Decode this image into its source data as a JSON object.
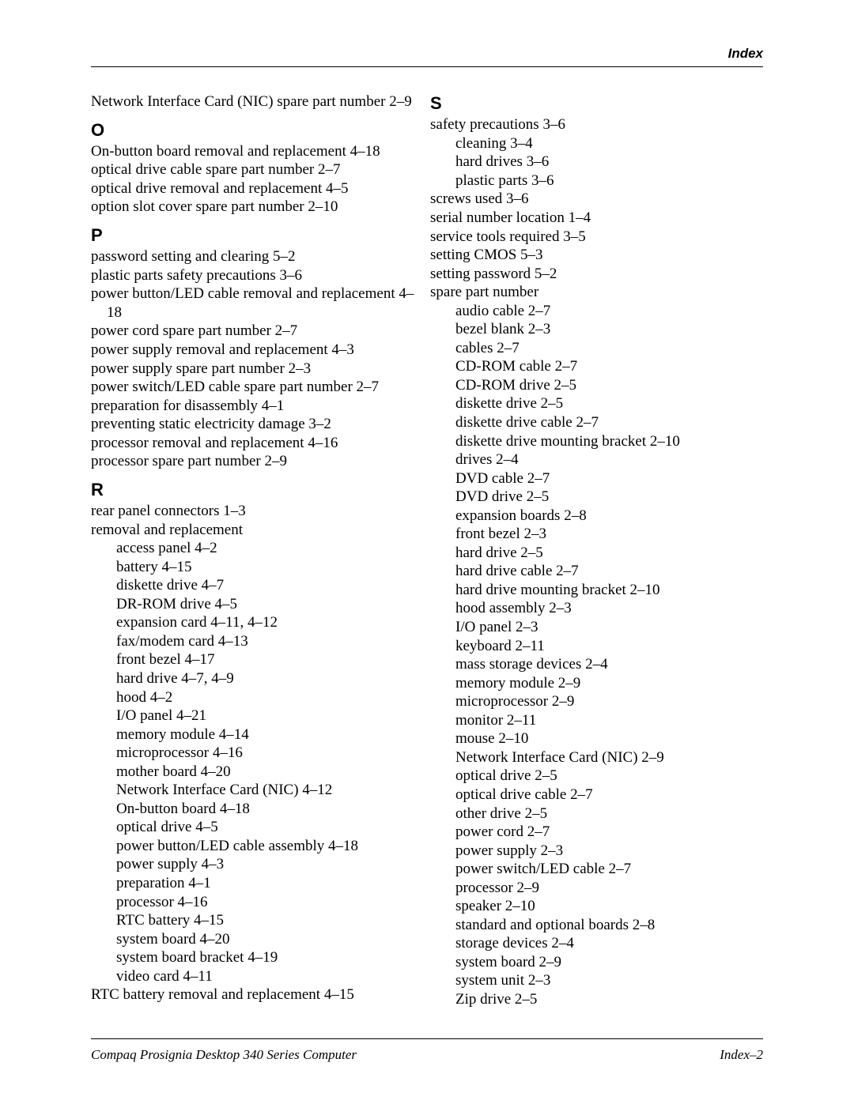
{
  "header_label": "Index",
  "footer_left": "Compaq Prosignia Desktop 340 Series Computer",
  "footer_right": "Index–2",
  "left_column": {
    "entry0": "Network Interface Card (NIC) spare part number 2–9",
    "letter_O": "O",
    "o0": "On-button board removal and replacement 4–18",
    "o1": "optical drive cable spare part number 2–7",
    "o2": "optical drive removal and replacement 4–5",
    "o3": "option slot cover spare part number 2–10",
    "letter_P": "P",
    "p0": "password setting and clearing 5–2",
    "p1": "plastic parts safety precautions 3–6",
    "p2": "power button/LED cable removal and replacement 4–18",
    "p3": "power cord spare part number 2–7",
    "p4": "power supply removal and replacement 4–3",
    "p5": "power supply spare part number 2–3",
    "p6": "power switch/LED cable spare part number 2–7",
    "p7": "preparation for disassembly 4–1",
    "p8": "preventing static electricity damage 3–2",
    "p9": "processor removal and replacement 4–16",
    "p10": "processor spare part number 2–9",
    "letter_R": "R",
    "r0": "rear panel connectors 1–3",
    "r1": "removal and replacement",
    "r_sub": {
      "s0": "access panel 4–2",
      "s1": "battery 4–15",
      "s2": "diskette drive 4–7",
      "s3": "DR-ROM drive 4–5",
      "s4": "expansion card 4–11, 4–12",
      "s5": "fax/modem card 4–13",
      "s6": "front bezel 4–17",
      "s7": "hard drive 4–7, 4–9",
      "s8": "hood 4–2",
      "s9": "I/O panel 4–21",
      "s10": "memory module 4–14",
      "s11": "microprocessor 4–16",
      "s12": "mother board 4–20",
      "s13": "Network Interface Card (NIC) 4–12",
      "s14": "On-button board 4–18",
      "s15": "optical drive 4–5",
      "s16": "power button/LED cable assembly 4–18",
      "s17": "power supply 4–3",
      "s18": "preparation 4–1",
      "s19": "processor 4–16",
      "s20": "RTC battery 4–15",
      "s21": "system board 4–20",
      "s22": "system board bracket 4–19",
      "s23": "video card 4–11"
    },
    "r2": "RTC battery removal and replacement 4–15"
  },
  "right_column": {
    "letter_S": "S",
    "s0": "safety precautions 3–6",
    "s0_sub": {
      "a": "cleaning 3–4",
      "b": "hard drives 3–6",
      "c": "plastic parts 3–6"
    },
    "s1": "screws used 3–6",
    "s2": "serial number location 1–4",
    "s3": "service tools required 3–5",
    "s4": "setting CMOS 5–3",
    "s5": "setting password 5–2",
    "s6": "spare part number",
    "s6_sub": {
      "a": "audio cable 2–7",
      "b": "bezel blank 2–3",
      "c": "cables 2–7",
      "d": "CD-ROM cable 2–7",
      "e": "CD-ROM drive 2–5",
      "f": "diskette drive 2–5",
      "g": "diskette drive cable 2–7",
      "h": "diskette drive mounting bracket 2–10",
      "i": "drives 2–4",
      "j": "DVD cable 2–7",
      "k": "DVD drive 2–5",
      "l": "expansion boards 2–8",
      "m": "front bezel 2–3",
      "n": "hard drive 2–5",
      "o": "hard drive cable 2–7",
      "p": "hard drive mounting bracket 2–10",
      "q": "hood assembly 2–3",
      "r": "I/O panel 2–3",
      "s": "keyboard 2–11",
      "t": "mass storage devices 2–4",
      "u": "memory module 2–9",
      "v": "microprocessor 2–9",
      "w": "monitor 2–11",
      "x": "mouse 2–10",
      "y": "Network Interface Card (NIC) 2–9",
      "z": "optical drive 2–5",
      "aa": "optical drive cable 2–7",
      "ab": "other drive 2–5",
      "ac": "power cord 2–7",
      "ad": "power supply 2–3",
      "ae": "power switch/LED cable 2–7",
      "af": "processor 2–9",
      "ag": "speaker 2–10",
      "ah": "standard and optional boards 2–8",
      "ai": "storage devices 2–4",
      "aj": "system board 2–9",
      "ak": "system unit 2–3",
      "al": "Zip drive 2–5"
    }
  }
}
